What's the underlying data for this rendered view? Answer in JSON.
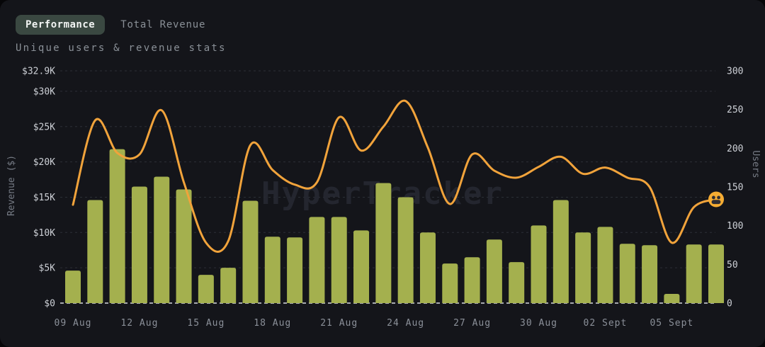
{
  "header": {
    "tabs": [
      {
        "label": "Performance",
        "active": true
      },
      {
        "label": "Total Revenue",
        "active": false
      }
    ],
    "subtitle": "Unique users & revenue stats"
  },
  "watermark": "HyperTracker",
  "colors": {
    "background": "#14151a",
    "bar": "#a4b04e",
    "line": "#f1a33b",
    "marker": "#f5ac33",
    "marker_face": "#2e2d33",
    "grid": "#2c2f37",
    "baseline": "#d9dce1",
    "tick_label": "#cdd0d6",
    "axis_title": "#767b85",
    "x_label": "#8b9099",
    "watermark_text": "#272a33"
  },
  "chart_data": {
    "type": "bar+line",
    "title": "Unique users & revenue stats",
    "categories": [
      "09 Aug",
      "10 Aug",
      "11 Aug",
      "12 Aug",
      "13 Aug",
      "14 Aug",
      "15 Aug",
      "16 Aug",
      "17 Aug",
      "18 Aug",
      "19 Aug",
      "20 Aug",
      "21 Aug",
      "22 Aug",
      "23 Aug",
      "24 Aug",
      "25 Aug",
      "26 Aug",
      "27 Aug",
      "28 Aug",
      "29 Aug",
      "30 Aug",
      "31 Aug",
      "01 Sept",
      "02 Sept",
      "03 Sept",
      "04 Sept",
      "05 Sept",
      "06 Sept",
      "07 Sept"
    ],
    "x_tick_labels": [
      "09 Aug",
      "12 Aug",
      "15 Aug",
      "18 Aug",
      "21 Aug",
      "24 Aug",
      "27 Aug",
      "30 Aug",
      "02 Sept",
      "05 Sept"
    ],
    "x_tick_every": 3,
    "series": [
      {
        "name": "Revenue ($)",
        "type": "bar",
        "unit": "USD thousands",
        "values": [
          4.6,
          14.6,
          21.8,
          16.5,
          17.9,
          16.1,
          4.0,
          5.0,
          14.5,
          9.4,
          9.3,
          12.2,
          12.2,
          10.3,
          17.0,
          15.0,
          10.0,
          5.6,
          6.5,
          9.0,
          5.8,
          11.0,
          14.6,
          10.0,
          10.8,
          8.4,
          8.2,
          1.3,
          8.3,
          8.3
        ]
      },
      {
        "name": "Users",
        "type": "line",
        "values": [
          127,
          236,
          194,
          192,
          249,
          156,
          78,
          80,
          204,
          172,
          153,
          156,
          240,
          197,
          228,
          261,
          201,
          128,
          192,
          171,
          162,
          176,
          189,
          167,
          175,
          162,
          150,
          78,
          124,
          134
        ]
      }
    ],
    "left_axis": {
      "title": "Revenue ($)",
      "max": 32.9,
      "min": 0,
      "tick_labels": [
        "$32.9K",
        "$30K",
        "$25K",
        "$20K",
        "$15K",
        "$10K",
        "$5K",
        "$0"
      ],
      "tick_values": [
        32.9,
        30,
        25,
        20,
        15,
        10,
        5,
        0
      ]
    },
    "right_axis": {
      "title": "Users",
      "max": 300,
      "min": 0,
      "tick_values": [
        300,
        250,
        200,
        150,
        100,
        50,
        0
      ]
    },
    "grid": "horizontal dashed",
    "legend": "none",
    "end_marker": "users-group emoji on last line point"
  }
}
